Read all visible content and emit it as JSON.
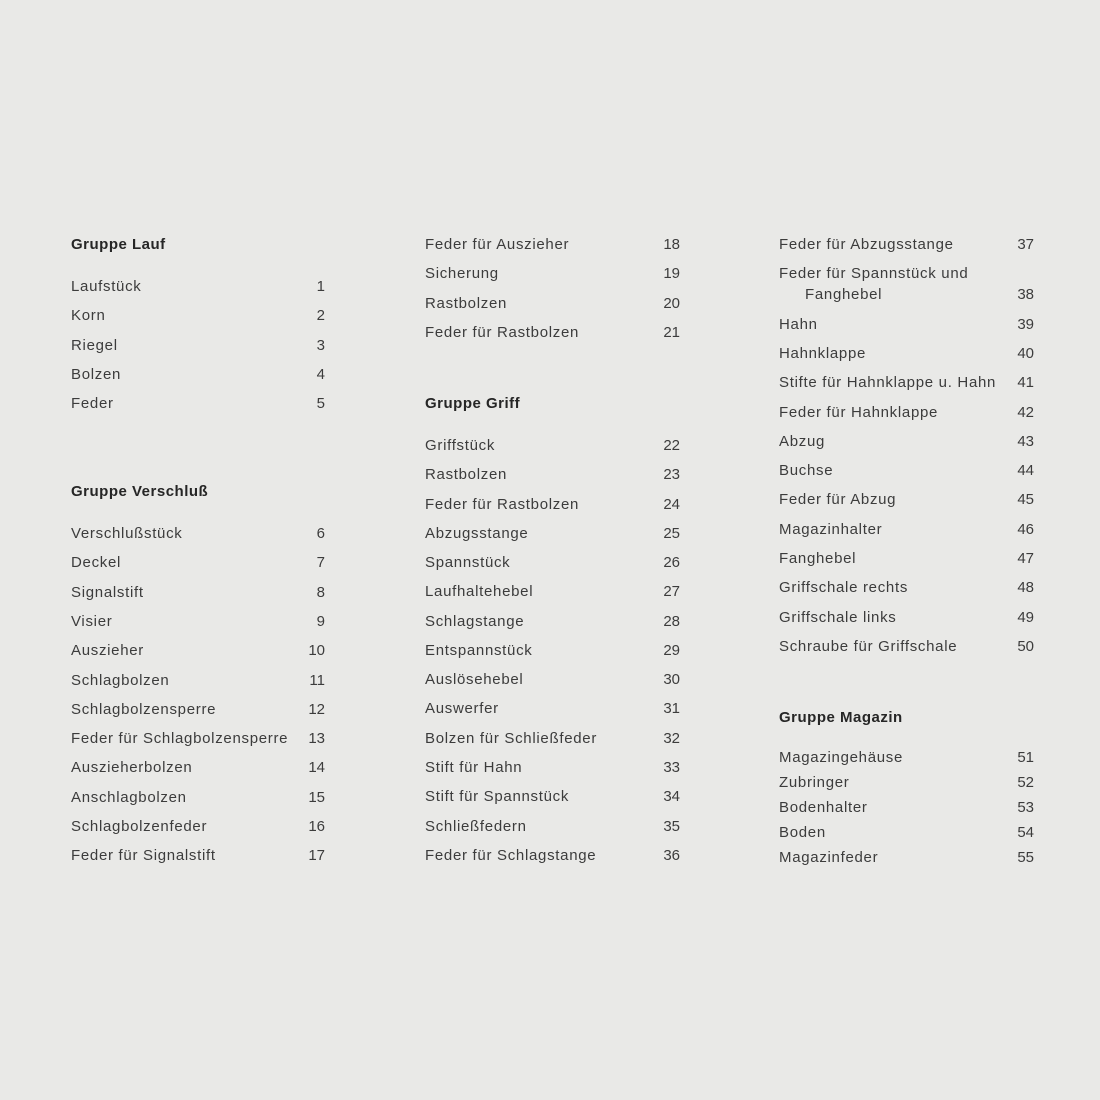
{
  "columns": [
    {
      "groups": [
        {
          "heading": "Gruppe Lauf",
          "items": [
            {
              "name": "Laufstück",
              "num": "1"
            },
            {
              "name": "Korn",
              "num": "2"
            },
            {
              "name": "Riegel",
              "num": "3"
            },
            {
              "name": "Bolzen",
              "num": "4"
            },
            {
              "name": "Feder",
              "num": "5"
            }
          ]
        },
        {
          "heading": "Gruppe Verschluß",
          "items": [
            {
              "name": "Verschlußstück",
              "num": "6"
            },
            {
              "name": "Deckel",
              "num": "7"
            },
            {
              "name": "Signalstift",
              "num": "8"
            },
            {
              "name": "Visier",
              "num": "9"
            },
            {
              "name": "Auszieher",
              "num": "10"
            },
            {
              "name": "Schlagbolzen",
              "num": "11"
            },
            {
              "name": "Schlagbolzensperre",
              "num": "12"
            },
            {
              "name": "Feder für Schlagbolzensperre",
              "num": "13"
            },
            {
              "name": "Auszieherbolzen",
              "num": "14"
            },
            {
              "name": "Anschlagbolzen",
              "num": "15"
            },
            {
              "name": "Schlagbolzenfeder",
              "num": "16"
            },
            {
              "name": "Feder für Signalstift",
              "num": "17"
            }
          ]
        }
      ]
    },
    {
      "groups": [
        {
          "heading": "",
          "items": [
            {
              "name": "Feder für Auszieher",
              "num": "18"
            },
            {
              "name": "Sicherung",
              "num": "19"
            },
            {
              "name": "Rastbolzen",
              "num": "20"
            },
            {
              "name": "Feder für Rastbolzen",
              "num": "21"
            }
          ]
        },
        {
          "heading": "Gruppe Griff",
          "items": [
            {
              "name": "Griffstück",
              "num": "22"
            },
            {
              "name": "Rastbolzen",
              "num": "23"
            },
            {
              "name": "Feder für Rastbolzen",
              "num": "24"
            },
            {
              "name": "Abzugsstange",
              "num": "25"
            },
            {
              "name": "Spannstück",
              "num": "26"
            },
            {
              "name": "Laufhaltehebel",
              "num": "27"
            },
            {
              "name": "Schlagstange",
              "num": "28"
            },
            {
              "name": "Entspannstück",
              "num": "29"
            },
            {
              "name": "Auslösehebel",
              "num": "30"
            },
            {
              "name": "Auswerfer",
              "num": "31"
            },
            {
              "name": "Bolzen für Schließfeder",
              "num": "32"
            },
            {
              "name": "Stift für Hahn",
              "num": "33"
            },
            {
              "name": "Stift für Spannstück",
              "num": "34"
            },
            {
              "name": "Schließfedern",
              "num": "35"
            },
            {
              "name": "Feder für Schlagstange",
              "num": "36"
            }
          ]
        }
      ]
    },
    {
      "groups": [
        {
          "heading": "",
          "items": [
            {
              "name": "Feder für Abzugsstange",
              "num": "37"
            },
            {
              "name": "Feder für Spannstück und\nFanghebel",
              "num": "38"
            },
            {
              "name": "Hahn",
              "num": "39"
            },
            {
              "name": "Hahnklappe",
              "num": "40"
            },
            {
              "name": "Stifte für Hahnklappe u. Hahn",
              "num": "41"
            },
            {
              "name": "Feder für Hahnklappe",
              "num": "42"
            },
            {
              "name": "Abzug",
              "num": "43"
            },
            {
              "name": "Buchse",
              "num": "44"
            },
            {
              "name": "Feder für Abzug",
              "num": "45"
            },
            {
              "name": "Magazinhalter",
              "num": "46"
            },
            {
              "name": "Fanghebel",
              "num": "47"
            },
            {
              "name": "Griffschale rechts",
              "num": "48"
            },
            {
              "name": "Griffschale links",
              "num": "49"
            },
            {
              "name": "Schraube für Griffschale",
              "num": "50"
            }
          ]
        },
        {
          "heading": "Gruppe Magazin",
          "items": [
            {
              "name": "Magazingehäuse",
              "num": "51"
            },
            {
              "name": "Zubringer",
              "num": "52"
            },
            {
              "name": "Bodenhalter",
              "num": "53"
            },
            {
              "name": "Boden",
              "num": "54"
            },
            {
              "name": "Magazinfeder",
              "num": "55"
            }
          ]
        }
      ]
    }
  ]
}
